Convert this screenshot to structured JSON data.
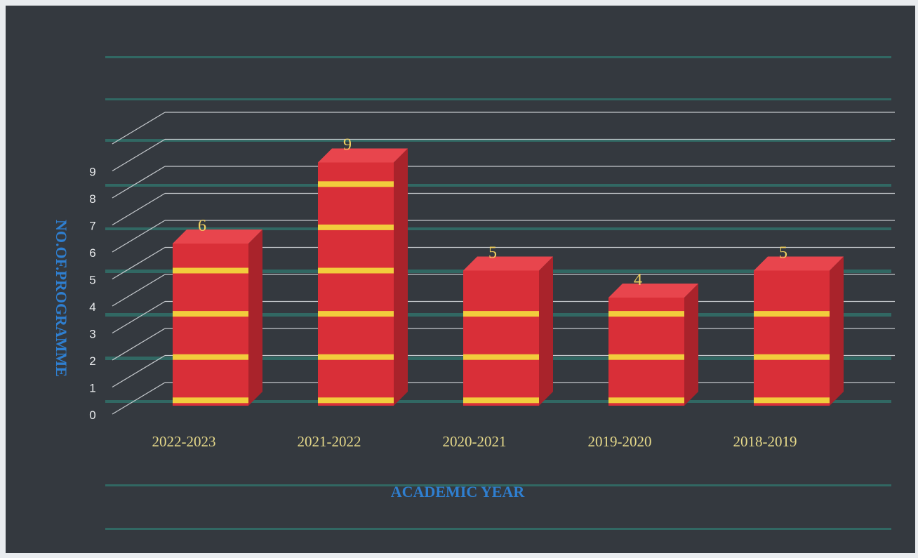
{
  "chart_data": {
    "type": "bar",
    "title": "",
    "xlabel": "ACADEMIC YEAR",
    "ylabel": "NO.OF.PROGRAMME",
    "categories": [
      "2022-2023",
      "2021-2022",
      "2020-2021",
      "2019-2020",
      "2018-2019"
    ],
    "values": [
      6,
      9,
      5,
      4,
      5
    ],
    "data_labels": [
      "6",
      "9",
      "5",
      "4",
      "5"
    ],
    "y_ticks": [
      "0",
      "1",
      "2",
      "3",
      "4",
      "5",
      "6",
      "7",
      "8",
      "9"
    ],
    "ylim": [
      0,
      10
    ],
    "grid": true,
    "legend": "none",
    "style": "3d-column",
    "colors": {
      "background": "#34393f",
      "bar_front": "#d92f38",
      "bar_side": "#a9232b",
      "bar_top": "#e8454d",
      "stripe": "#f2cc3c",
      "gridline": "#c4c8cc",
      "teal_band": "#2f8f82",
      "tick_label": "#e8eaec",
      "category_label": "#e6d98a",
      "axis_title": "#2f7fd0",
      "data_label": "#f0d060"
    }
  }
}
